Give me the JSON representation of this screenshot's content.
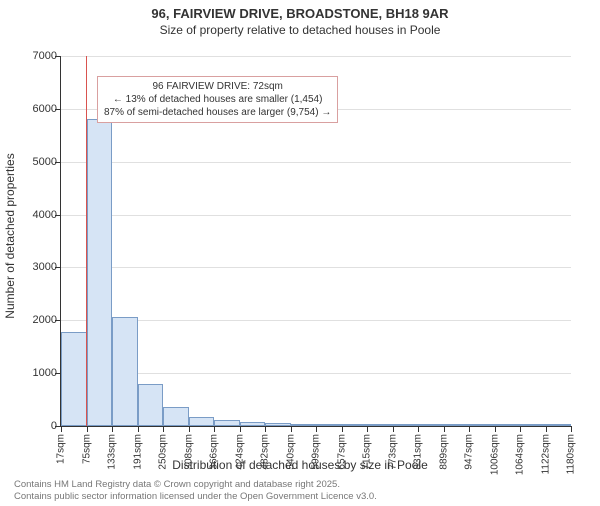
{
  "title": "96, FAIRVIEW DRIVE, BROADSTONE, BH18 9AR",
  "subtitle": "Size of property relative to detached houses in Poole",
  "y_axis_title": "Number of detached properties",
  "x_axis_title": "Distribution of detached houses by size in Poole",
  "ylim": [
    0,
    7000
  ],
  "ytick_step": 1000,
  "yticks": [
    0,
    1000,
    2000,
    3000,
    4000,
    5000,
    6000,
    7000
  ],
  "xticks": [
    "17sqm",
    "75sqm",
    "133sqm",
    "191sqm",
    "250sqm",
    "308sqm",
    "366sqm",
    "424sqm",
    "482sqm",
    "540sqm",
    "599sqm",
    "657sqm",
    "715sqm",
    "773sqm",
    "831sqm",
    "889sqm",
    "947sqm",
    "1006sqm",
    "1064sqm",
    "1122sqm",
    "1180sqm"
  ],
  "bars": [
    {
      "v": 1770
    },
    {
      "v": 5800
    },
    {
      "v": 2060
    },
    {
      "v": 800
    },
    {
      "v": 360
    },
    {
      "v": 180
    },
    {
      "v": 110
    },
    {
      "v": 80
    },
    {
      "v": 60
    },
    {
      "v": 45
    },
    {
      "v": 35
    },
    {
      "v": 28
    },
    {
      "v": 22
    },
    {
      "v": 18
    },
    {
      "v": 15
    },
    {
      "v": 12
    },
    {
      "v": 10
    },
    {
      "v": 8
    },
    {
      "v": 6
    },
    {
      "v": 5
    }
  ],
  "bar_fill": "#d6e4f5",
  "bar_stroke": "#7a9cc6",
  "grid_color": "#e0e0e0",
  "background_color": "#ffffff",
  "marker": {
    "color": "#d9534f",
    "bin_fraction_from_left": 0.97,
    "bin_index": 0,
    "label_line1": "96 FAIRVIEW DRIVE: 72sqm",
    "label_line2": "← 13% of detached houses are smaller (1,454)",
    "label_line3": "87% of semi-detached houses are larger (9,754) →"
  },
  "footer_line1": "Contains HM Land Registry data © Crown copyright and database right 2025.",
  "footer_line2": "Contains public sector information licensed under the Open Government Licence v3.0.",
  "fontsize_title": 13,
  "fontsize_subtitle": 12,
  "fontsize_axis_title": 12,
  "fontsize_tick": 11,
  "fontsize_xtick": 10,
  "fontsize_annotation": 10,
  "fontsize_footer": 9.5
}
